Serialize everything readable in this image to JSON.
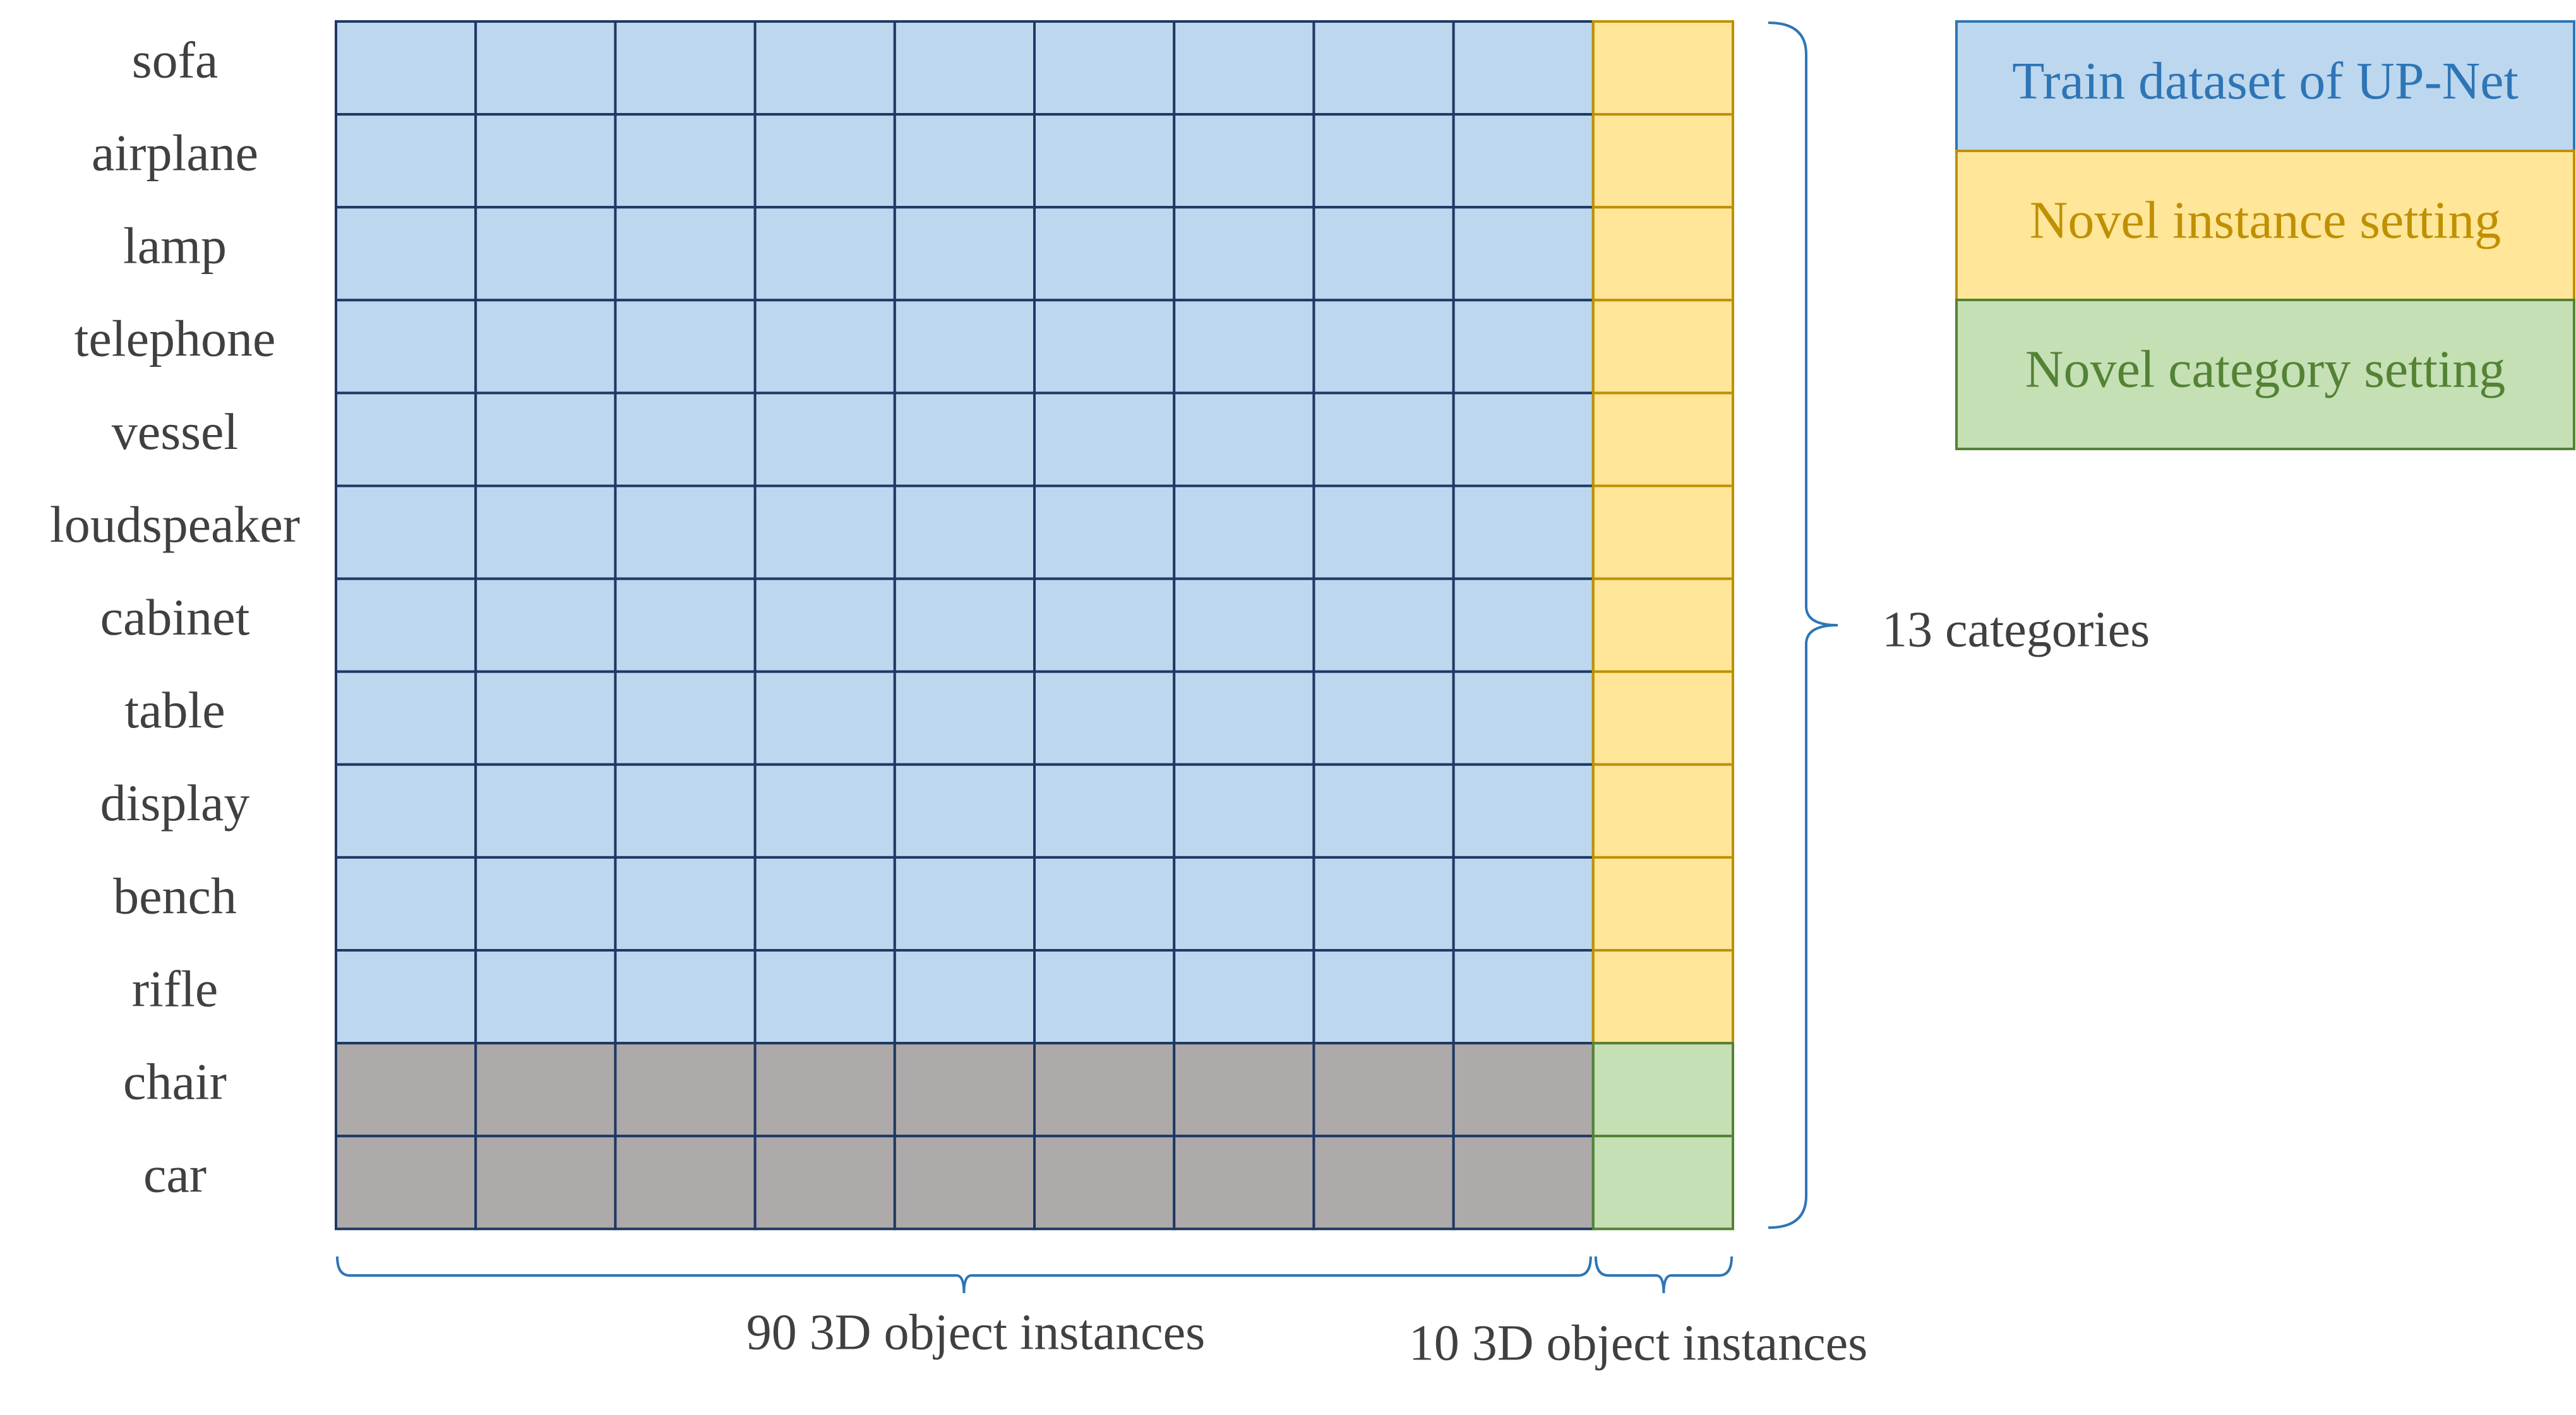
{
  "categories": [
    "sofa",
    "airplane",
    "lamp",
    "telephone",
    "vessel",
    "loudspeaker",
    "cabinet",
    "table",
    "display",
    "bench",
    "rifle",
    "chair",
    "car"
  ],
  "grid": {
    "columns_main": 9,
    "columns_novel": 1,
    "rows_train": 11,
    "rows_novel_category": 2
  },
  "labels": {
    "categories_brace": "13 categories",
    "main_instances": "90 3D object instances",
    "novel_instances": "10 3D object instances"
  },
  "legend": [
    {
      "key": "train",
      "label": "Train dataset of UP-Net",
      "fill": "#BDD7EE",
      "stroke": "#2E75B6",
      "text_color": "#2E75B6"
    },
    {
      "key": "novel_instance",
      "label": "Novel instance setting",
      "fill": "#FFE699",
      "stroke": "#BF9000",
      "text_color": "#BF9000"
    },
    {
      "key": "novel_category",
      "label": "Novel category setting",
      "fill": "#C5E0B4",
      "stroke": "#548235",
      "text_color": "#548235"
    }
  ],
  "colors": {
    "train_fill": "#BDD7EE",
    "train_stroke": "#1F3864",
    "novel_instance_fill": "#FFE699",
    "novel_instance_stroke": "#BF9000",
    "novel_category_fill": "#C5E0B4",
    "novel_category_stroke": "#548235",
    "unused_fill": "#AEAAAA",
    "brace": "#2E75B6",
    "text": "#404040"
  }
}
